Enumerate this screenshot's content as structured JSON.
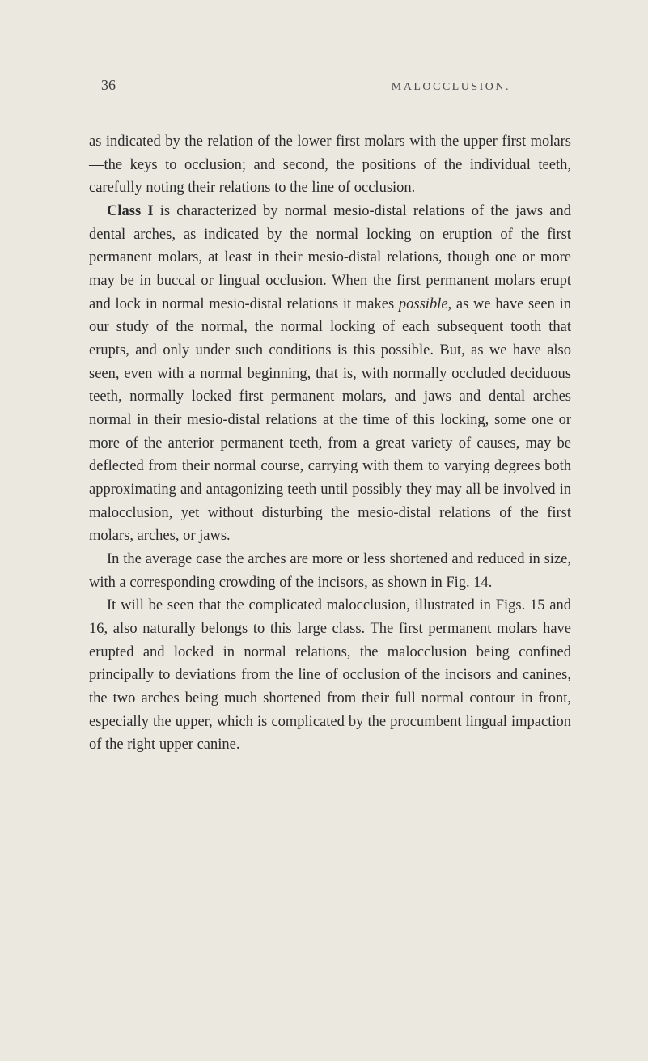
{
  "header": {
    "page_number": "36",
    "running_title": "MALOCCLUSION."
  },
  "paragraphs": {
    "p1": "as indicated by the relation of the lower first molars with the upper first molars—the keys to occlusion; and second, the positions of the individual teeth, carefully noting their relations to the line of occlusion.",
    "p2_label": "Class I",
    "p2_text": " is characterized by normal mesio-distal relations of the jaws and dental arches, as indicated by the normal locking on eruption of the first permanent molars, at least in their mesio-distal relations, though one or more may be in buccal or lingual occlusion. When the first permanent molars erupt and lock in normal mesio-distal relations it makes ",
    "p2_italic": "possible,",
    "p2_text2": " as we have seen in our study of the normal, the normal locking of each subsequent tooth that erupts, and only under such conditions is this possible. But, as we have also seen, even with a normal beginning, that is, with normally occluded deciduous teeth, normally locked first permanent molars, and jaws and dental arches normal in their mesio-distal relations at the time of this locking, some one or more of the anterior permanent teeth, from a great variety of causes, may be deflected from their normal course, carrying with them to varying degrees both approximating and antagonizing teeth until possibly they may all be involved in malocclusion, yet without disturbing the mesio-distal relations of the first molars, arches, or jaws.",
    "p3": "In the average case the arches are more or less shortened and reduced in size, with a corresponding crowding of the incisors, as shown in Fig. 14.",
    "p4": "It will be seen that the complicated malocclusion, illustrated in Figs. 15 and 16, also naturally belongs to this large class. The first permanent molars have erupted and locked in normal relations, the malocclusion being confined principally to deviations from the line of occlusion of the incisors and canines, the two arches being much shortened from their full normal contour in front, especially the upper, which is complicated by the procumbent lingual impaction of the right upper canine."
  }
}
